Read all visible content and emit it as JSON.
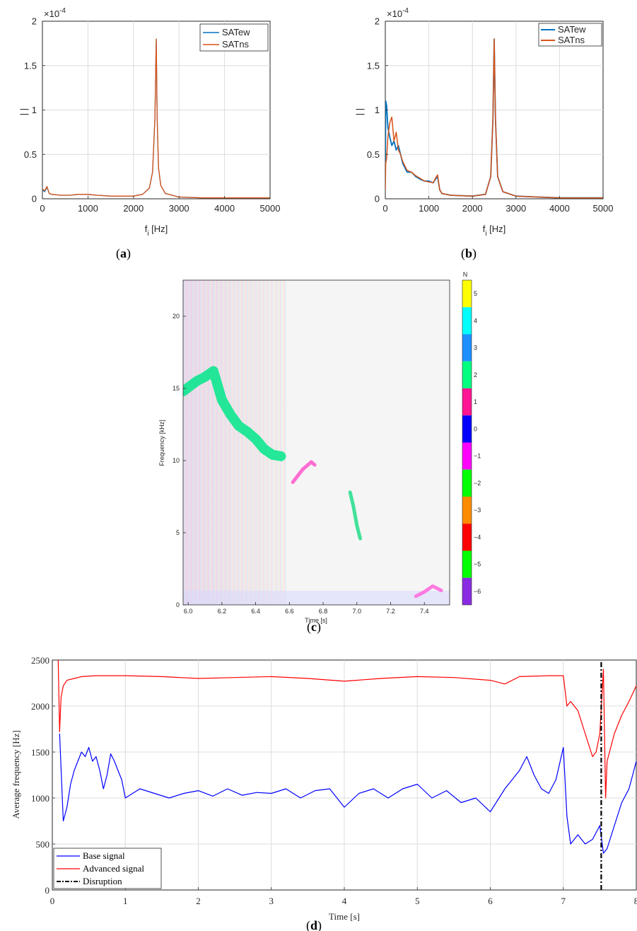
{
  "captions": {
    "a_open": "(",
    "a_letter": "a",
    "a_close": ")",
    "b_letter": "b",
    "c_letter": "c",
    "d_letter": "d"
  },
  "colors": {
    "satew": "#0072BD",
    "satns": "#D95319",
    "base": "#0000FF",
    "advanced": "#FF0000",
    "disruption": "#000000"
  },
  "chart_data": [
    {
      "type": "line",
      "panel": "a",
      "xlabel_main": "f",
      "xlabel_sub": "i",
      "xlabel_unit": " [Hz]",
      "ylabel": "| |",
      "exponent_base": "×10",
      "exponent_power": "-4",
      "xlim": [
        0,
        5000
      ],
      "ylim": [
        0,
        2
      ],
      "xticks": [
        0,
        1000,
        2000,
        3000,
        4000,
        5000
      ],
      "xtick_labels": [
        "0",
        "1000",
        "2000",
        "3000",
        "4000",
        "5000"
      ],
      "yticks": [
        0,
        0.5,
        1,
        1.5,
        2
      ],
      "ytick_labels": [
        "0",
        "0.5",
        "1",
        "1.5",
        "2"
      ],
      "grid": true,
      "legend": "top-right",
      "series": [
        {
          "name": "SATew",
          "x": [
            0,
            50,
            100,
            150,
            200,
            400,
            600,
            800,
            1000,
            1200,
            1500,
            2000,
            2200,
            2350,
            2420,
            2470,
            2500,
            2520,
            2550,
            2600,
            2700,
            3000,
            3500,
            4000,
            4500,
            5000
          ],
          "y": [
            0.1,
            0.08,
            0.13,
            0.06,
            0.05,
            0.04,
            0.04,
            0.05,
            0.05,
            0.04,
            0.03,
            0.03,
            0.05,
            0.12,
            0.3,
            0.9,
            1.8,
            0.9,
            0.35,
            0.15,
            0.06,
            0.02,
            0.01,
            0.01,
            0.01,
            0.01
          ]
        },
        {
          "name": "SATns",
          "x": [
            0,
            50,
            100,
            150,
            200,
            400,
            600,
            800,
            1000,
            1200,
            1500,
            2000,
            2200,
            2350,
            2420,
            2470,
            2500,
            2520,
            2550,
            2600,
            2700,
            3000,
            3500,
            4000,
            4500,
            5000
          ],
          "y": [
            0.11,
            0.09,
            0.14,
            0.06,
            0.05,
            0.04,
            0.04,
            0.05,
            0.05,
            0.04,
            0.03,
            0.03,
            0.05,
            0.12,
            0.3,
            0.9,
            1.8,
            0.9,
            0.35,
            0.15,
            0.06,
            0.02,
            0.01,
            0.01,
            0.01,
            0.01
          ]
        }
      ]
    },
    {
      "type": "line",
      "panel": "b",
      "xlabel_main": "f",
      "xlabel_sub": "i",
      "xlabel_unit": " [Hz]",
      "ylabel": "| |",
      "exponent_base": "×10",
      "exponent_power": "-4",
      "xlim": [
        0,
        5000
      ],
      "ylim": [
        0,
        2
      ],
      "xticks": [
        0,
        1000,
        2000,
        3000,
        4000,
        5000
      ],
      "xtick_labels": [
        "0",
        "1000",
        "2000",
        "3000",
        "4000",
        "5000"
      ],
      "yticks": [
        0,
        0.5,
        1,
        1.5,
        2
      ],
      "ytick_labels": [
        "0",
        "0.5",
        "1",
        "1.5",
        "2"
      ],
      "grid": true,
      "legend": "top-right",
      "series": [
        {
          "name": "SATew",
          "x": [
            0,
            10,
            30,
            60,
            100,
            150,
            200,
            250,
            300,
            350,
            400,
            500,
            600,
            700,
            800,
            900,
            1000,
            1100,
            1150,
            1200,
            1250,
            1300,
            1500,
            2000,
            2300,
            2420,
            2470,
            2500,
            2530,
            2580,
            2700,
            3000,
            3500,
            4000,
            5000
          ],
          "y": [
            0.2,
            1.1,
            1.05,
            0.8,
            0.7,
            0.6,
            0.65,
            0.55,
            0.6,
            0.5,
            0.4,
            0.3,
            0.3,
            0.25,
            0.22,
            0.2,
            0.2,
            0.18,
            0.22,
            0.25,
            0.1,
            0.06,
            0.04,
            0.03,
            0.05,
            0.25,
            0.9,
            1.8,
            0.9,
            0.25,
            0.08,
            0.03,
            0.02,
            0.01,
            0.01
          ]
        },
        {
          "name": "SATns",
          "x": [
            0,
            10,
            30,
            60,
            100,
            150,
            200,
            250,
            300,
            350,
            400,
            500,
            600,
            700,
            800,
            900,
            1000,
            1100,
            1150,
            1200,
            1250,
            1300,
            1500,
            2000,
            2300,
            2420,
            2470,
            2500,
            2530,
            2580,
            2700,
            3000,
            3500,
            4000,
            5000
          ],
          "y": [
            0.1,
            0.4,
            0.45,
            0.7,
            0.85,
            0.92,
            0.65,
            0.75,
            0.55,
            0.5,
            0.42,
            0.32,
            0.3,
            0.26,
            0.23,
            0.2,
            0.19,
            0.18,
            0.23,
            0.27,
            0.1,
            0.06,
            0.04,
            0.03,
            0.05,
            0.25,
            0.9,
            1.8,
            0.9,
            0.25,
            0.08,
            0.03,
            0.02,
            0.01,
            0.01
          ]
        }
      ]
    },
    {
      "type": "heatmap",
      "panel": "c",
      "xlabel": "Time [s]",
      "ylabel": "Frequency [kHz]",
      "xlim": [
        5.97,
        7.55
      ],
      "ylim": [
        0,
        22.5
      ],
      "xticks": [
        6.0,
        6.2,
        6.4,
        6.6,
        6.8,
        7.0,
        7.2,
        7.4
      ],
      "xtick_labels": [
        "6.0",
        "6.2",
        "6.4",
        "6.6",
        "6.8",
        "7.0",
        "7.2",
        "7.4"
      ],
      "yticks": [
        0,
        5,
        10,
        15,
        20
      ],
      "ytick_labels": [
        "0",
        "5",
        "10",
        "15",
        "20"
      ],
      "colorbar_title": "N",
      "colorbar_ticks": [
        "5",
        "4",
        "3",
        "2",
        "1",
        "0",
        "−1",
        "−2",
        "−3",
        "−4",
        "−5",
        "−6"
      ],
      "colorbar_colors": [
        "#FFFF00",
        "#00FFFF",
        "#1E90FF",
        "#00FF7F",
        "#FF1493",
        "#0000FF",
        "#FF00FF",
        "#00FF00",
        "#FF8C00",
        "#FF0000",
        "#00FF00",
        "#8A2BE2"
      ],
      "ridges": [
        {
          "label": "2",
          "color": "#00E68A",
          "t": [
            5.97,
            6.05,
            6.1,
            6.15,
            6.2,
            6.25,
            6.3,
            6.35,
            6.4,
            6.45,
            6.5,
            6.55
          ],
          "f": [
            14.8,
            15.5,
            15.8,
            16.2,
            14.2,
            13.2,
            12.4,
            12.0,
            11.5,
            10.8,
            10.4,
            10.3
          ]
        },
        {
          "label": "-1",
          "color": "#FF55CC",
          "t": [
            6.62,
            6.68,
            6.73,
            6.75
          ],
          "f": [
            8.5,
            9.4,
            9.9,
            9.7
          ]
        },
        {
          "label": "2",
          "color": "#22DD88",
          "t": [
            6.96,
            6.98,
            7.0,
            7.02
          ],
          "f": [
            7.8,
            6.8,
            5.5,
            4.6
          ]
        },
        {
          "label": "-1",
          "color": "#FF66DD",
          "t": [
            7.35,
            7.4,
            7.45,
            7.5
          ],
          "f": [
            0.6,
            0.9,
            1.3,
            1.0
          ]
        }
      ]
    },
    {
      "type": "line",
      "panel": "d",
      "xlabel": "Time [s]",
      "ylabel": "Average frequency [Hz]",
      "xlim": [
        0,
        8
      ],
      "ylim": [
        0,
        2500
      ],
      "xticks": [
        0,
        1,
        2,
        3,
        4,
        5,
        6,
        7,
        8
      ],
      "xtick_labels": [
        "0",
        "1",
        "2",
        "3",
        "4",
        "5",
        "6",
        "7",
        "8"
      ],
      "yticks": [
        0,
        500,
        1000,
        1500,
        2000,
        2500
      ],
      "ytick_labels": [
        "0",
        "500",
        "1000",
        "1500",
        "2000",
        "2500"
      ],
      "grid": true,
      "legend": "bottom-left",
      "series": [
        {
          "name": "Base signal",
          "x": [
            0.1,
            0.15,
            0.2,
            0.25,
            0.3,
            0.35,
            0.4,
            0.45,
            0.5,
            0.55,
            0.6,
            0.65,
            0.7,
            0.75,
            0.8,
            0.85,
            0.9,
            0.95,
            1.0,
            1.2,
            1.4,
            1.6,
            1.8,
            2.0,
            2.2,
            2.4,
            2.6,
            2.8,
            3.0,
            3.2,
            3.4,
            3.6,
            3.8,
            4.0,
            4.2,
            4.4,
            4.6,
            4.8,
            5.0,
            5.2,
            5.4,
            5.6,
            5.8,
            6.0,
            6.2,
            6.3,
            6.4,
            6.5,
            6.6,
            6.7,
            6.8,
            6.9,
            7.0,
            7.05,
            7.1,
            7.2,
            7.3,
            7.4,
            7.5,
            7.55,
            7.6,
            7.7,
            7.8,
            7.9,
            8.0
          ],
          "y": [
            1700,
            750,
            900,
            1150,
            1300,
            1400,
            1500,
            1450,
            1550,
            1400,
            1450,
            1300,
            1100,
            1250,
            1480,
            1400,
            1300,
            1200,
            1000,
            1100,
            1050,
            1000,
            1050,
            1080,
            1020,
            1100,
            1030,
            1060,
            1050,
            1100,
            1000,
            1080,
            1100,
            900,
            1050,
            1100,
            1000,
            1100,
            1150,
            1000,
            1080,
            950,
            1000,
            850,
            1100,
            1200,
            1300,
            1450,
            1250,
            1100,
            1050,
            1200,
            1550,
            800,
            500,
            600,
            500,
            550,
            700,
            400,
            450,
            700,
            950,
            1100,
            1400
          ]
        },
        {
          "name": "Advanced signal",
          "x": [
            0.08,
            0.1,
            0.12,
            0.15,
            0.2,
            0.3,
            0.4,
            0.6,
            0.8,
            1.0,
            1.5,
            2.0,
            2.5,
            3.0,
            3.5,
            4.0,
            4.5,
            5.0,
            5.5,
            6.0,
            6.2,
            6.4,
            6.8,
            7.0,
            7.05,
            7.1,
            7.2,
            7.3,
            7.4,
            7.45,
            7.5,
            7.55,
            7.58,
            7.6,
            7.7,
            7.8,
            7.9,
            8.0
          ],
          "y": [
            2500,
            1720,
            2100,
            2220,
            2280,
            2300,
            2320,
            2330,
            2330,
            2330,
            2320,
            2300,
            2310,
            2320,
            2300,
            2270,
            2300,
            2320,
            2310,
            2280,
            2240,
            2320,
            2330,
            2330,
            2000,
            2050,
            1950,
            1700,
            1450,
            1500,
            1700,
            2400,
            1000,
            1400,
            1700,
            1900,
            2050,
            2220
          ]
        },
        {
          "name": "Disruption",
          "x": [
            7.52,
            7.52
          ],
          "y": [
            0,
            2500
          ]
        }
      ]
    }
  ]
}
